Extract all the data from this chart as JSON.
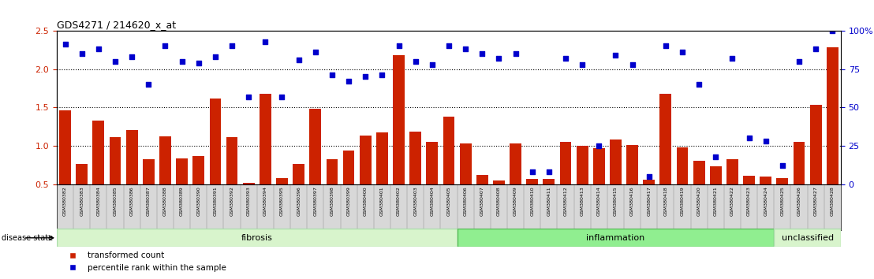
{
  "title": "GDS4271 / 214620_x_at",
  "samples": [
    "GSM380382",
    "GSM380383",
    "GSM380384",
    "GSM380385",
    "GSM380386",
    "GSM380387",
    "GSM380388",
    "GSM380389",
    "GSM380390",
    "GSM380391",
    "GSM380392",
    "GSM380393",
    "GSM380394",
    "GSM380395",
    "GSM380396",
    "GSM380397",
    "GSM380398",
    "GSM380399",
    "GSM380400",
    "GSM380401",
    "GSM380402",
    "GSM380403",
    "GSM380404",
    "GSM380405",
    "GSM380406",
    "GSM380407",
    "GSM380408",
    "GSM380409",
    "GSM380410",
    "GSM380411",
    "GSM380412",
    "GSM380413",
    "GSM380414",
    "GSM380415",
    "GSM380416",
    "GSM380417",
    "GSM380418",
    "GSM380419",
    "GSM380420",
    "GSM380421",
    "GSM380422",
    "GSM380423",
    "GSM380424",
    "GSM380425",
    "GSM380426",
    "GSM380427",
    "GSM380428"
  ],
  "bar_values": [
    1.46,
    0.76,
    1.33,
    1.11,
    1.21,
    0.83,
    1.12,
    0.84,
    0.87,
    1.62,
    1.11,
    0.52,
    1.68,
    0.58,
    0.76,
    1.48,
    0.83,
    0.94,
    1.13,
    1.17,
    2.18,
    1.18,
    1.05,
    1.38,
    1.03,
    0.62,
    0.55,
    1.03,
    0.57,
    0.57,
    1.05,
    1.0,
    0.97,
    1.08,
    1.01,
    0.56,
    1.68,
    0.98,
    0.8,
    0.73,
    0.82,
    0.61,
    0.6,
    0.58,
    1.05,
    1.53,
    2.28
  ],
  "percentile_values": [
    91,
    85,
    88,
    80,
    83,
    65,
    90,
    80,
    79,
    83,
    90,
    57,
    93,
    57,
    81,
    86,
    71,
    67,
    70,
    71,
    90,
    80,
    78,
    90,
    88,
    85,
    82,
    85,
    8,
    8,
    82,
    78,
    25,
    84,
    78,
    5,
    90,
    86,
    65,
    18,
    82,
    30,
    28,
    12,
    80,
    88,
    100
  ],
  "groups": [
    {
      "label": "fibrosis",
      "start": 0,
      "end": 24,
      "color": "#d8f4cc",
      "edge_color": "#aaddaa"
    },
    {
      "label": "inflammation",
      "start": 24,
      "end": 43,
      "color": "#90EE90",
      "edge_color": "#55bb55"
    },
    {
      "label": "unclassified",
      "start": 43,
      "end": 47,
      "color": "#d8f4cc",
      "edge_color": "#aaddaa"
    }
  ],
  "ylim_left": [
    0.5,
    2.5
  ],
  "ylim_right": [
    0,
    100
  ],
  "bar_color": "#CC2200",
  "dot_color": "#0000CC",
  "yticks_left": [
    0.5,
    1.0,
    1.5,
    2.0,
    2.5
  ],
  "yticks_right": [
    0,
    25,
    50,
    75,
    100
  ],
  "hlines": [
    1.0,
    1.5,
    2.0
  ],
  "tick_label_color_left": "#CC2200",
  "tick_label_color_right": "#0000CC",
  "xtick_bg_color": "#d8d8d8",
  "disease_state_label": "disease state"
}
